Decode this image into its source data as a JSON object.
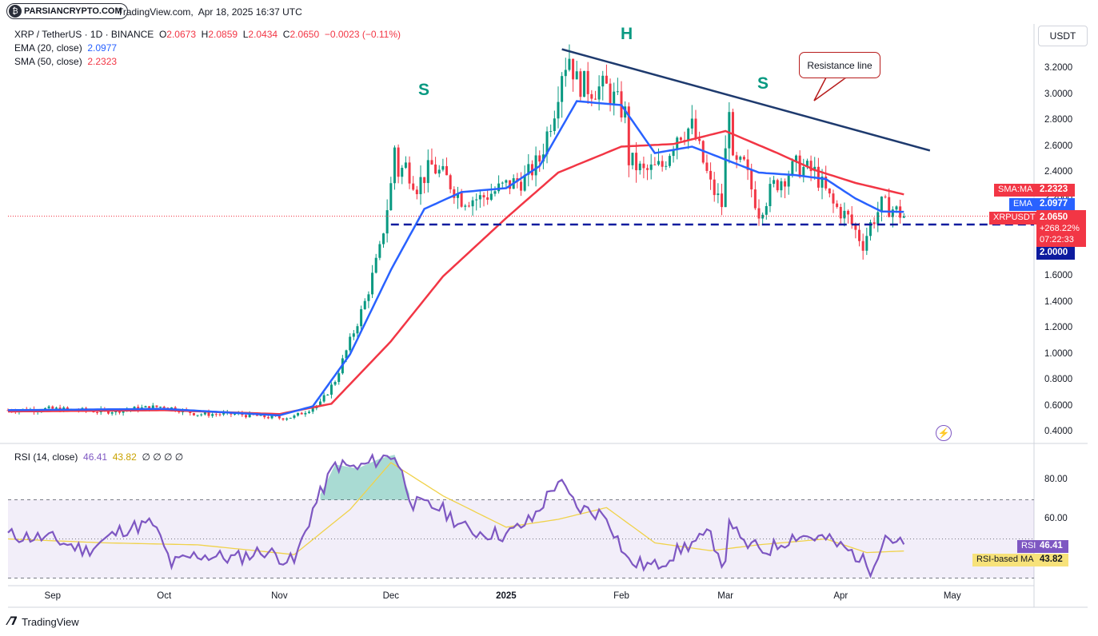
{
  "header": {
    "logo_text": "PARSIANCRYPTO.COM",
    "logo_icon": "parsiancrypto-logo-icon",
    "published_site": "TradingView.com,",
    "published_date": "Apr 18, 2025 16:37 UTC"
  },
  "legend": {
    "symbol": "XRP / TetherUS · 1D · BINANCE",
    "o_label": "O",
    "o_value": "2.0673",
    "h_label": "H",
    "h_value": "2.0859",
    "l_label": "L",
    "l_value": "2.0434",
    "c_label": "C",
    "c_value": "2.0650",
    "change": "−0.0023 (−0.11%)",
    "ema_label": "EMA (20, close)",
    "ema_value": "2.0977",
    "sma_label": "SMA (50, close)",
    "sma_value": "2.2323",
    "rsi_label": "RSI (14, close)",
    "rsi_value": "46.41",
    "rsi_ma_value": "43.82",
    "rsi_extra": "∅ ∅ ∅ ∅"
  },
  "right_panel": {
    "currency_button": "USDT",
    "sma_tag": "SMA:MA",
    "sma_tag_value": "2.2323",
    "ema_tag": "EMA",
    "ema_tag_value": "2.0977",
    "symbol_tag": "XRPUSDT",
    "last_price": "2.0650",
    "pct_change": "+268.22%",
    "countdown": "07:22:33",
    "support_price": "2.0000",
    "rsi_tag": "RSI",
    "rsi_tag_value": "46.41",
    "rsi_ma_tag": "RSI-based MA",
    "rsi_ma_tag_value": "43.82"
  },
  "annotations": {
    "left_shoulder": "S",
    "head": "H",
    "right_shoulder": "S",
    "resistance_callout": "Resistance line"
  },
  "footer": {
    "brand": "TradingView",
    "brand_icon": "tradingview-logo-icon"
  },
  "colors": {
    "up": "#089981",
    "down": "#f23645",
    "ema": "#2962ff",
    "sma": "#f23645",
    "rsi": "#7e57c2",
    "rsi_ma": "#f0d24a",
    "support": "#0d1b9e",
    "resistance": "#1e3a6e"
  },
  "chart_data": [
    {
      "type": "candlestick",
      "title": "XRP / TetherUS · 1D · BINANCE",
      "x_ticks": [
        "Sep",
        "Oct",
        "Nov",
        "Dec",
        "2025",
        "Feb",
        "Mar",
        "Apr",
        "May"
      ],
      "y_ticks": [
        "3.2000",
        "3.0000",
        "2.8000",
        "2.6000",
        "2.4000",
        "2.2000",
        "2.0000",
        "1.8000",
        "1.6000",
        "1.4000",
        "1.2000",
        "1.0000",
        "0.8000",
        "0.6000",
        "0.4000"
      ],
      "ylim": [
        0.4,
        3.35
      ],
      "close_series": {
        "dates": [
          "2024-08-20",
          "2024-09-01",
          "2024-09-15",
          "2024-10-01",
          "2024-10-10",
          "2024-10-20",
          "2024-11-01",
          "2024-11-05",
          "2024-11-12",
          "2024-11-16",
          "2024-11-20",
          "2024-11-24",
          "2024-11-28",
          "2024-12-01",
          "2024-12-02",
          "2024-12-03",
          "2024-12-05",
          "2024-12-08",
          "2024-12-12",
          "2024-12-16",
          "2024-12-20",
          "2024-12-25",
          "2025-01-01",
          "2025-01-06",
          "2025-01-10",
          "2025-01-14",
          "2025-01-16",
          "2025-01-18",
          "2025-01-20",
          "2025-01-24",
          "2025-01-28",
          "2025-02-02",
          "2025-02-03",
          "2025-02-07",
          "2025-02-12",
          "2025-02-16",
          "2025-02-20",
          "2025-02-25",
          "2025-02-28",
          "2025-03-02",
          "2025-03-03",
          "2025-03-06",
          "2025-03-10",
          "2025-03-14",
          "2025-03-20",
          "2025-03-25",
          "2025-03-30",
          "2025-04-03",
          "2025-04-07",
          "2025-04-09",
          "2025-04-12",
          "2025-04-15",
          "2025-04-18"
        ],
        "values": [
          0.57,
          0.58,
          0.56,
          0.6,
          0.54,
          0.54,
          0.51,
          0.52,
          0.62,
          0.8,
          1.1,
          1.4,
          1.8,
          2.3,
          2.6,
          2.4,
          2.45,
          2.3,
          2.45,
          2.35,
          2.2,
          2.2,
          2.3,
          2.35,
          2.5,
          2.9,
          3.2,
          3.3,
          3.1,
          3.05,
          3.05,
          2.85,
          2.5,
          2.4,
          2.45,
          2.7,
          2.75,
          2.3,
          2.15,
          2.95,
          2.45,
          2.45,
          2.1,
          2.3,
          2.45,
          2.4,
          2.15,
          2.05,
          1.85,
          2.0,
          2.15,
          2.12,
          2.065
        ]
      },
      "ema_20": {
        "dates": [
          "2024-08-20",
          "2024-10-01",
          "2024-11-01",
          "2024-11-10",
          "2024-11-20",
          "2024-12-01",
          "2024-12-10",
          "2024-12-20",
          "2025-01-01",
          "2025-01-10",
          "2025-01-20",
          "2025-02-01",
          "2025-02-10",
          "2025-02-20",
          "2025-03-01",
          "2025-03-10",
          "2025-03-20",
          "2025-03-28",
          "2025-04-05",
          "2025-04-12",
          "2025-04-18"
        ],
        "values": [
          0.57,
          0.58,
          0.53,
          0.6,
          1.0,
          1.65,
          2.12,
          2.25,
          2.28,
          2.45,
          2.95,
          2.92,
          2.55,
          2.6,
          2.5,
          2.4,
          2.38,
          2.35,
          2.2,
          2.1,
          2.0977
        ]
      },
      "sma_50": {
        "dates": [
          "2024-08-20",
          "2024-10-01",
          "2024-11-01",
          "2024-11-15",
          "2024-12-01",
          "2024-12-15",
          "2025-01-01",
          "2025-01-15",
          "2025-02-01",
          "2025-02-15",
          "2025-03-01",
          "2025-03-15",
          "2025-03-25",
          "2025-04-05",
          "2025-04-18"
        ],
        "values": [
          0.56,
          0.57,
          0.54,
          0.62,
          1.1,
          1.6,
          2.05,
          2.4,
          2.6,
          2.62,
          2.72,
          2.55,
          2.42,
          2.32,
          2.2323
        ]
      },
      "support_line": {
        "value": 2.0,
        "label": "2.0000"
      },
      "resistance_line": {
        "from": [
          "2025-01-16",
          3.35
        ],
        "to": [
          "2025-04-25",
          2.57
        ]
      },
      "last_price": 2.065
    },
    {
      "type": "line",
      "title": "RSI (14, close)",
      "y_ticks": [
        "80.00",
        "60.00"
      ],
      "ylim": [
        12,
        100
      ],
      "bands": [
        30,
        50,
        70
      ],
      "rsi": {
        "dates": [
          "2024-08-20",
          "2024-09-01",
          "2024-09-10",
          "2024-09-20",
          "2024-09-28",
          "2024-10-03",
          "2024-10-10",
          "2024-10-20",
          "2024-10-28",
          "2024-11-05",
          "2024-11-10",
          "2024-11-16",
          "2024-11-22",
          "2024-11-28",
          "2024-12-02",
          "2024-12-07",
          "2024-12-14",
          "2024-12-22",
          "2025-01-01",
          "2025-01-08",
          "2025-01-15",
          "2025-01-20",
          "2025-01-28",
          "2025-02-03",
          "2025-02-10",
          "2025-02-18",
          "2025-02-25",
          "2025-03-01",
          "2025-03-02",
          "2025-03-05",
          "2025-03-12",
          "2025-03-20",
          "2025-03-28",
          "2025-04-05",
          "2025-04-09",
          "2025-04-13",
          "2025-04-18"
        ],
        "values": [
          52,
          50,
          44,
          55,
          58,
          37,
          42,
          40,
          44,
          38,
          65,
          88,
          86,
          91,
          93,
          68,
          66,
          54,
          52,
          60,
          80,
          66,
          62,
          38,
          36,
          46,
          52,
          35,
          62,
          48,
          44,
          52,
          50,
          42,
          35,
          52,
          46.41
        ]
      },
      "rsi_ma": {
        "dates": [
          "2024-08-20",
          "2024-09-15",
          "2024-10-10",
          "2024-11-05",
          "2024-11-20",
          "2024-12-01",
          "2024-12-15",
          "2025-01-01",
          "2025-01-15",
          "2025-01-28",
          "2025-02-10",
          "2025-02-25",
          "2025-03-10",
          "2025-03-28",
          "2025-04-08",
          "2025-04-18"
        ],
        "values": [
          50,
          48,
          47,
          42,
          65,
          89,
          72,
          56,
          60,
          66,
          48,
          44,
          47,
          50,
          43,
          43.82
        ]
      }
    }
  ]
}
